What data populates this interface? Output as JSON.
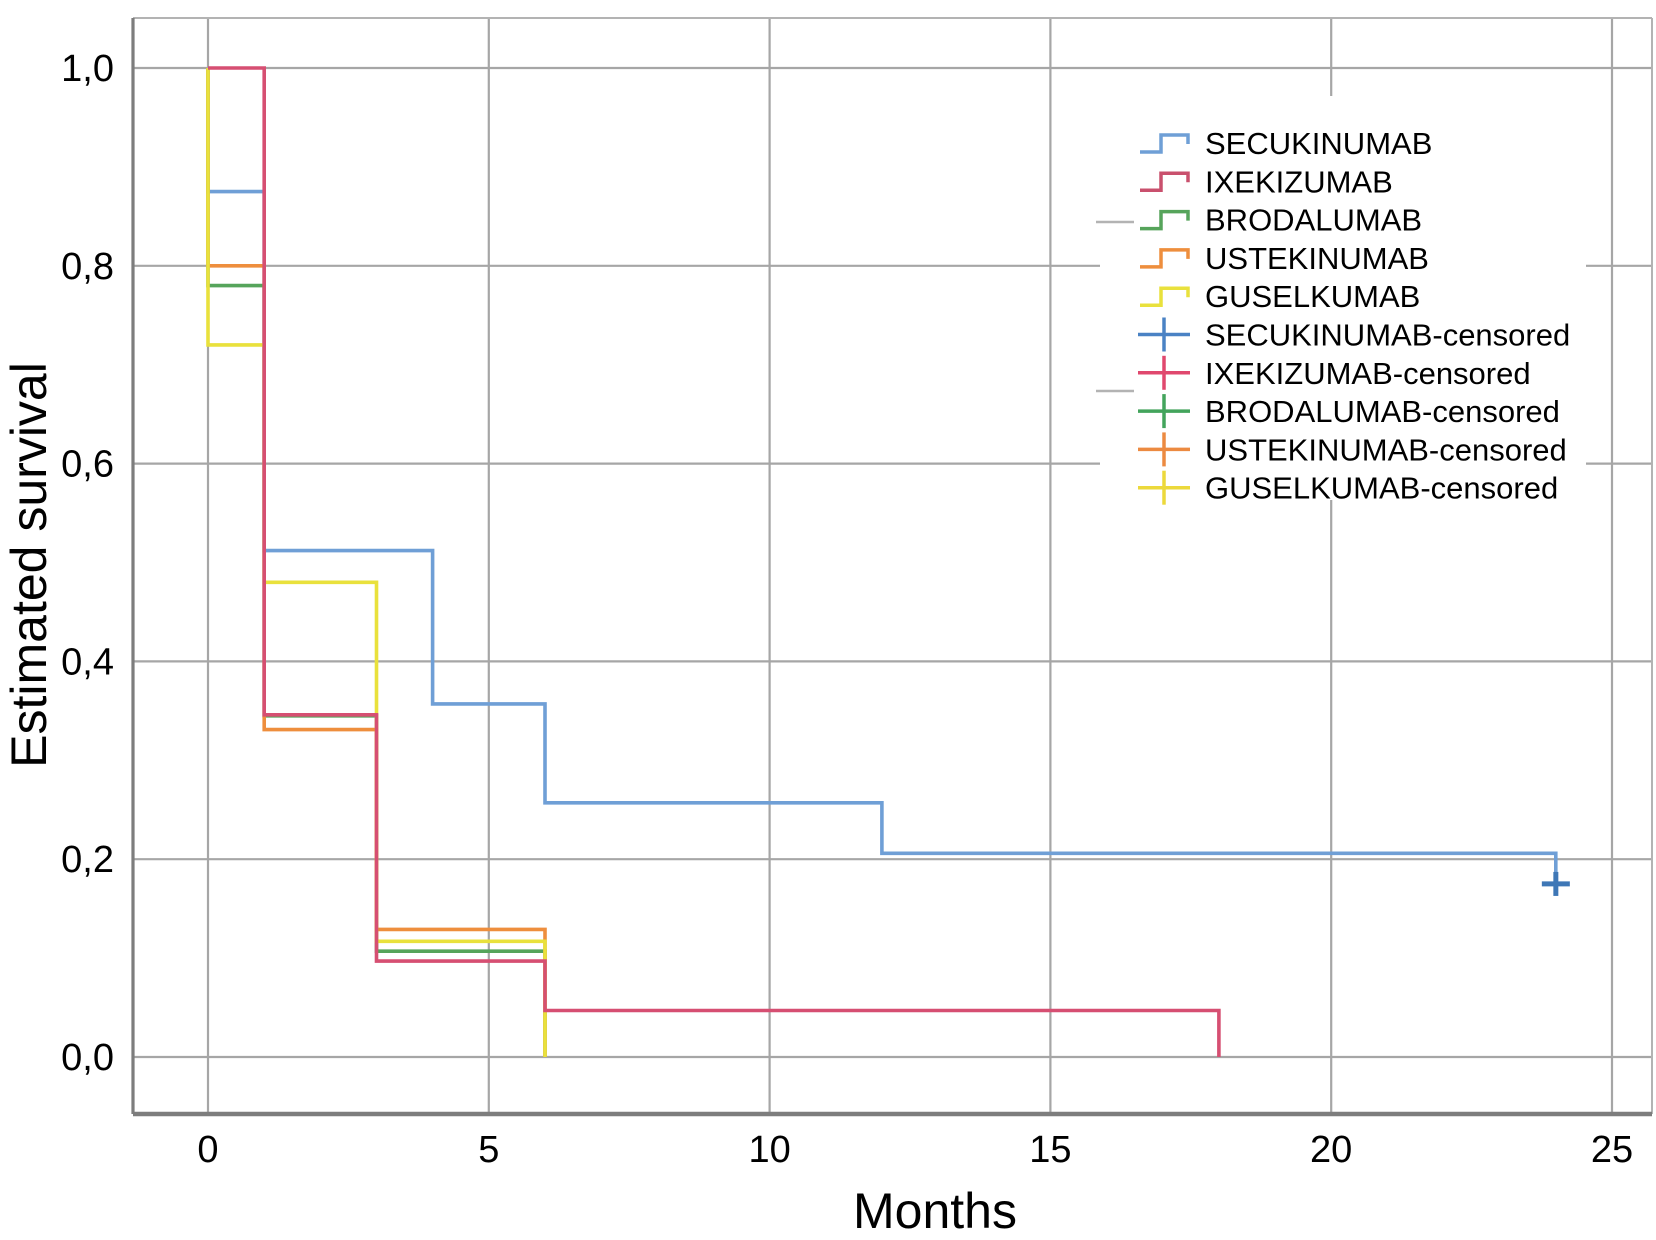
{
  "figure": {
    "background": "#ffffff",
    "text_color": "#000000",
    "grid_color": "#a6a6a6",
    "axis_line_color": "#7d7d7d",
    "border_color": "#b3b3b3",
    "y_axis_title": "Estimated survival",
    "x_axis_title": "Months",
    "x_ticks": [
      {
        "label": "0",
        "value": 0
      },
      {
        "label": "5",
        "value": 5
      },
      {
        "label": "10",
        "value": 10
      },
      {
        "label": "15",
        "value": 15
      },
      {
        "label": "20",
        "value": 20
      },
      {
        "label": "25",
        "value": 25
      }
    ],
    "y_ticks": [
      {
        "label": "0,0",
        "value": 0.0
      },
      {
        "label": "0,2",
        "value": 0.2
      },
      {
        "label": "0,4",
        "value": 0.4
      },
      {
        "label": "0,6",
        "value": 0.6
      },
      {
        "label": "0,8",
        "value": 0.8
      },
      {
        "label": "1,0",
        "value": 1.0
      }
    ],
    "legend_artifact_rows": [
      222,
      391
    ]
  },
  "chart_data": {
    "type": "line",
    "subtype": "kaplan-meier-step",
    "title": "",
    "xlabel": "Months",
    "ylabel": "Estimated survival",
    "xlim": [
      0,
      25
    ],
    "ylim": [
      0.0,
      1.0
    ],
    "grid": true,
    "legend_position": "upper-right",
    "series": [
      {
        "name": "SECUKINUMAB",
        "color": "#6f9fd6",
        "points": [
          [
            0,
            1.0
          ],
          [
            0,
            0.875
          ],
          [
            1,
            0.875
          ],
          [
            1,
            0.512
          ],
          [
            4,
            0.512
          ],
          [
            4,
            0.357
          ],
          [
            6,
            0.357
          ],
          [
            6,
            0.257
          ],
          [
            12,
            0.257
          ],
          [
            12,
            0.206
          ],
          [
            24,
            0.206
          ],
          [
            24,
            0.175
          ]
        ]
      },
      {
        "name": "BRODALUMAB",
        "color": "#56a45b",
        "points": [
          [
            0,
            1.0
          ],
          [
            0,
            0.78
          ],
          [
            1,
            0.78
          ],
          [
            1,
            0.345
          ],
          [
            3,
            0.345
          ],
          [
            3,
            0.107
          ],
          [
            6,
            0.107
          ],
          [
            6,
            0.0
          ]
        ]
      },
      {
        "name": "USTEKINUMAB",
        "color": "#ee8e3d",
        "points": [
          [
            0,
            1.0
          ],
          [
            0,
            0.8
          ],
          [
            1,
            0.8
          ],
          [
            1,
            0.331
          ],
          [
            3,
            0.331
          ],
          [
            3,
            0.129
          ],
          [
            6,
            0.129
          ],
          [
            6,
            0.0
          ]
        ]
      },
      {
        "name": "GUSELKUMAB",
        "color": "#e9e13c",
        "points": [
          [
            0,
            1.0
          ],
          [
            0,
            0.72
          ],
          [
            1,
            0.72
          ],
          [
            1,
            0.48
          ],
          [
            3,
            0.48
          ],
          [
            3,
            0.117
          ],
          [
            6,
            0.117
          ],
          [
            6,
            0.0
          ]
        ]
      },
      {
        "name": "IXEKIZUMAB",
        "color": "#d64f72",
        "points": [
          [
            0,
            1.0
          ],
          [
            1,
            1.0
          ],
          [
            1,
            0.346
          ],
          [
            3,
            0.346
          ],
          [
            3,
            0.097
          ],
          [
            6,
            0.097
          ],
          [
            6,
            0.047
          ],
          [
            18,
            0.047
          ],
          [
            18,
            0.0
          ]
        ]
      }
    ],
    "censored_markers": [
      {
        "series": "SECUKINUMAB",
        "x": 24,
        "y": 0.175,
        "color": "#3e77b6"
      }
    ],
    "legend": [
      {
        "label": "SECUKINUMAB",
        "marker": "step",
        "color": "#6f9fd6"
      },
      {
        "label": "IXEKIZUMAB",
        "marker": "step",
        "color": "#c9506d"
      },
      {
        "label": "BRODALUMAB",
        "marker": "step",
        "color": "#56a45b"
      },
      {
        "label": "USTEKINUMAB",
        "marker": "step",
        "color": "#ee8e3d"
      },
      {
        "label": "GUSELKUMAB",
        "marker": "step",
        "color": "#e9e13c"
      },
      {
        "label": "SECUKINUMAB-censored",
        "marker": "plus",
        "color": "#4a82c4"
      },
      {
        "label": "IXEKIZUMAB-censored",
        "marker": "plus",
        "color": "#e0486e"
      },
      {
        "label": "BRODALUMAB-censored",
        "marker": "plus",
        "color": "#43a45c"
      },
      {
        "label": "USTEKINUMAB-censored",
        "marker": "plus",
        "color": "#ec8a41"
      },
      {
        "label": "GUSELKUMAB-censored",
        "marker": "plus",
        "color": "#ecd93b"
      }
    ]
  }
}
